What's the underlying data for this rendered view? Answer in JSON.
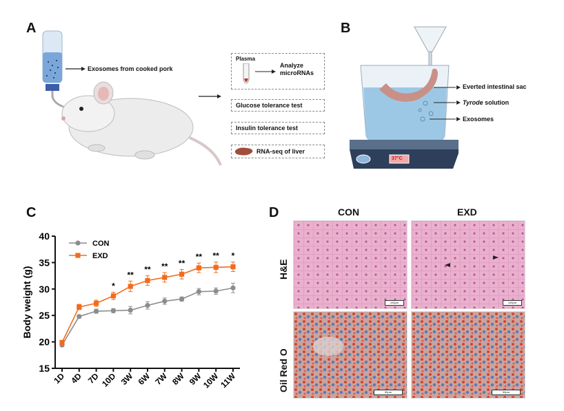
{
  "panels": {
    "a": {
      "letter": "A",
      "drinking_label": "Exosomes from cooked pork",
      "plasma": "Plasma",
      "analyze": "Analyze microRNAs",
      "glucose": "Glucose tolerance test",
      "insulin": "Insulin tolerance test",
      "rnaseq": "RNA-seq of liver"
    },
    "b": {
      "letter": "B",
      "everted": "Everted intestinal sac",
      "tyrode_italic": "Tyrode",
      "tyrode_rest": " solution",
      "exosomes": "Exosomes",
      "temp": "37°C"
    },
    "c": {
      "letter": "C"
    },
    "d": {
      "letter": "D",
      "col_con": "CON",
      "col_exd": "EXD",
      "row_he": "H&E",
      "row_oil": "Oil Red O",
      "scale_he": "100μm",
      "scale_oil": "50μm"
    }
  },
  "colors": {
    "con": "#8c8c8c",
    "exd": "#f26b1d",
    "he_bg": "#e9a6c7",
    "oil_bg": "#c9a39c"
  },
  "chart_data": {
    "type": "line",
    "categories": [
      "1D",
      "4D",
      "7D",
      "10D",
      "3W",
      "6W",
      "7W",
      "8W",
      "9W",
      "10W",
      "11W"
    ],
    "ylabel": "Body weight (g)",
    "xlabel": "",
    "ylim": [
      15,
      40
    ],
    "yticks": [
      "15",
      "20",
      "25",
      "30",
      "35",
      "40"
    ],
    "legend": "top-left",
    "series": [
      {
        "name": "CON",
        "values": [
          19.4,
          24.8,
          25.8,
          25.9,
          26.0,
          26.9,
          27.7,
          28.1,
          29.5,
          29.6,
          30.2
        ],
        "errors": [
          0.3,
          0.3,
          0.4,
          0.4,
          0.7,
          0.7,
          0.6,
          0.4,
          0.6,
          0.6,
          0.9
        ]
      },
      {
        "name": "EXD",
        "values": [
          19.9,
          26.6,
          27.3,
          28.7,
          30.5,
          31.6,
          32.2,
          32.8,
          34.0,
          34.1,
          34.2
        ],
        "errors": [
          0.3,
          0.5,
          0.6,
          0.7,
          1.0,
          0.9,
          0.9,
          0.9,
          0.9,
          1.0,
          0.9
        ]
      }
    ],
    "significance": [
      "",
      "",
      "",
      "*",
      "**",
      "**",
      "**",
      "**",
      "**",
      "**",
      "*"
    ]
  }
}
